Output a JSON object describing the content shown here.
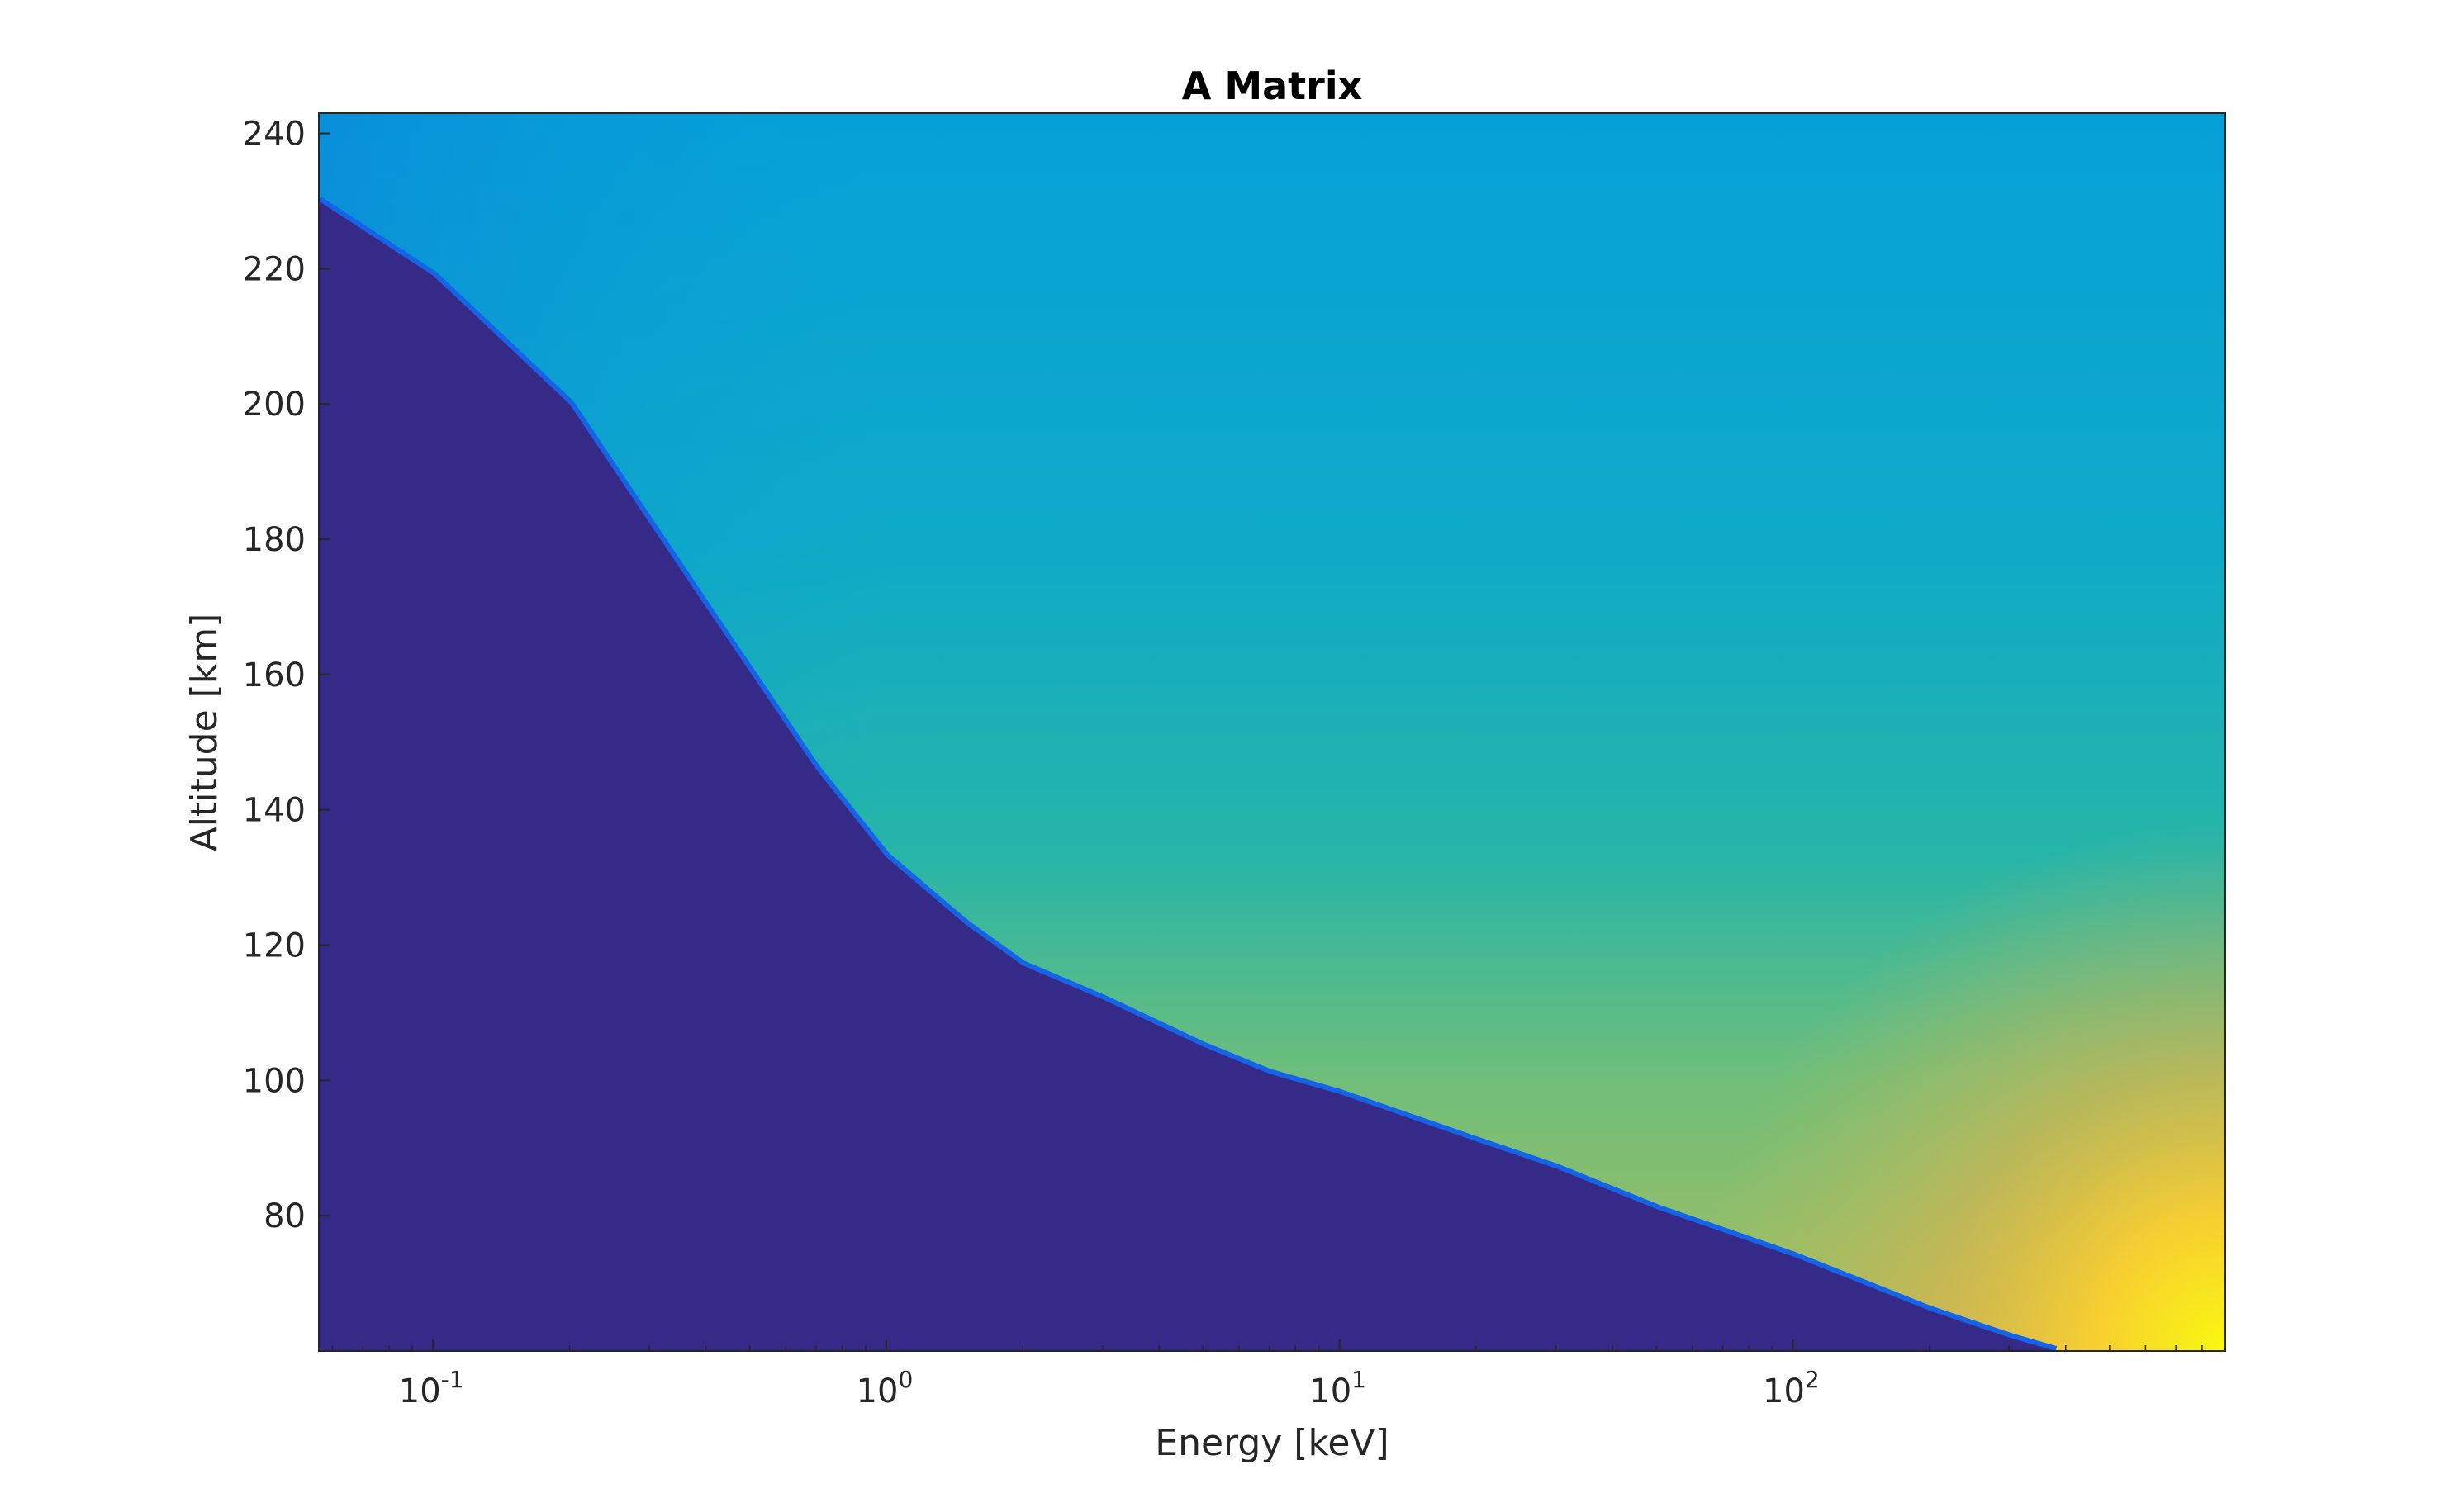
{
  "chart_data": {
    "type": "heatmap",
    "title": "A Matrix",
    "xlabel": "Energy [keV]",
    "ylabel": "Altitude [km]",
    "x_scale": "log",
    "xlim": [
      0.056,
      900
    ],
    "ylim": [
      60,
      243
    ],
    "x_ticks": [
      {
        "value": 0.1,
        "base": "10",
        "exp": "-1"
      },
      {
        "value": 1,
        "base": "10",
        "exp": "0"
      },
      {
        "value": 10,
        "base": "10",
        "exp": "1"
      },
      {
        "value": 100,
        "base": "10",
        "exp": "2"
      }
    ],
    "y_ticks": [
      80,
      100,
      120,
      140,
      160,
      180,
      200,
      220,
      240
    ],
    "grid": false,
    "colorbar": false,
    "colormap": [
      "#352a87",
      "#0f5cdd",
      "#1481d6",
      "#06a4ca",
      "#2eb7a4",
      "#87bf77",
      "#d1bb59",
      "#fec832",
      "#f9fb0e"
    ],
    "background_color": "#352a87",
    "cutoff_boundary": {
      "energy_keV": [
        0.056,
        0.1,
        0.2,
        0.4,
        0.7,
        1,
        1.5,
        2,
        3,
        5,
        7,
        10,
        20,
        30,
        50,
        100,
        200,
        300,
        380
      ],
      "altitude_km": [
        230,
        219,
        200,
        170,
        146,
        133,
        123,
        117,
        112,
        105,
        101,
        98,
        91,
        87,
        81,
        74,
        66,
        62,
        60
      ]
    }
  }
}
